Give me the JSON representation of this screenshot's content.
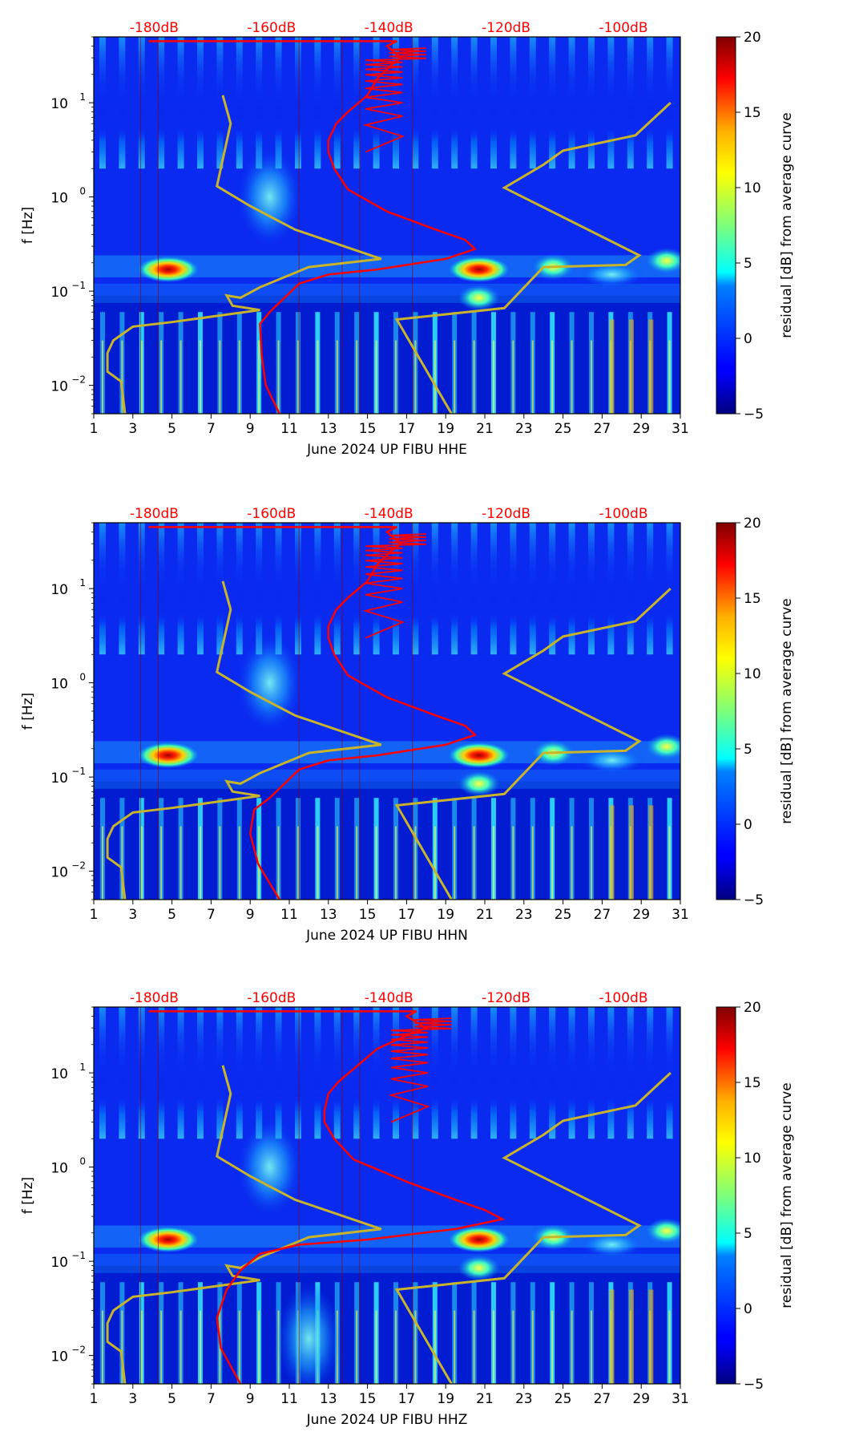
{
  "chart_data": [
    {
      "type": "heatmap",
      "xlabel": "June 2024 UP FIBU  HHE",
      "ylabel": "f [Hz]",
      "xlim": [
        1,
        31
      ],
      "ylim": [
        0.005,
        50
      ],
      "yscale": "log",
      "x_ticks": [
        "1",
        "3",
        "5",
        "7",
        "9",
        "11",
        "13",
        "15",
        "17",
        "19",
        "21",
        "23",
        "25",
        "27",
        "29",
        "31"
      ],
      "y_ticks": [
        {
          "base": "10",
          "exp": "1",
          "value": 10
        },
        {
          "base": "10",
          "exp": "0",
          "value": 1
        },
        {
          "base": "10",
          "exp": "−1",
          "value": 0.1
        },
        {
          "base": "10",
          "exp": "−2",
          "value": 0.01
        }
      ],
      "db_labels": [
        {
          "text": "-180dB",
          "x": 4.5
        },
        {
          "text": "-160dB",
          "x": 10.5
        },
        {
          "text": "-140dB",
          "x": 16.5
        },
        {
          "text": "-120dB",
          "x": 22.5
        },
        {
          "text": "-100dB",
          "x": 28.5
        }
      ],
      "colorbar": {
        "label": "residual [dB] from average curve",
        "min": -5,
        "max": 20,
        "ticks": [
          "20",
          "15",
          "10",
          "5",
          "0",
          "−5"
        ]
      },
      "hotspots": [
        {
          "day": 4.8,
          "f": 0.17,
          "level": 20
        },
        {
          "day": 20.7,
          "f": 0.17,
          "level": 18
        },
        {
          "day": 20.7,
          "f": 0.085,
          "level": 12
        },
        {
          "day": 24.5,
          "f": 0.18,
          "level": 10
        },
        {
          "day": 30.3,
          "f": 0.21,
          "level": 10
        },
        {
          "day": 10.0,
          "f": 1.0,
          "level": 6
        },
        {
          "day": 27.5,
          "f": 0.15,
          "level": 8
        }
      ],
      "yellow_curve": [
        [
          7.6,
          12
        ],
        [
          8.0,
          6
        ],
        [
          7.3,
          1.3
        ],
        [
          9.0,
          0.8
        ],
        [
          11.3,
          0.45
        ],
        [
          15.7,
          0.22
        ],
        [
          12.0,
          0.18
        ],
        [
          9.5,
          0.11
        ],
        [
          8.5,
          0.085
        ],
        [
          7.8,
          0.09
        ],
        [
          8.1,
          0.07
        ],
        [
          9.5,
          0.063
        ],
        [
          5.0,
          0.047
        ],
        [
          3.0,
          0.042
        ],
        [
          2.0,
          0.03
        ],
        [
          1.7,
          0.022
        ],
        [
          1.7,
          0.014
        ],
        [
          2.4,
          0.011
        ],
        [
          2.6,
          0.005
        ]
      ],
      "yellow_curve2": [
        [
          30.5,
          10
        ],
        [
          28.7,
          4.5
        ],
        [
          25.0,
          3.1
        ],
        [
          24.0,
          2.2
        ],
        [
          22.0,
          1.25
        ],
        [
          28.9,
          0.24
        ],
        [
          28.2,
          0.19
        ],
        [
          24.0,
          0.18
        ],
        [
          22.0,
          0.066
        ],
        [
          16.5,
          0.05
        ],
        [
          19.3,
          0.005
        ]
      ],
      "red_curve": [
        [
          3.8,
          45
        ],
        [
          16.5,
          45
        ],
        [
          16.0,
          40
        ],
        [
          16.7,
          30
        ],
        [
          16.2,
          25
        ],
        [
          15.5,
          18
        ],
        [
          15.0,
          12
        ],
        [
          14.0,
          8
        ],
        [
          13.4,
          6
        ],
        [
          13.0,
          4
        ],
        [
          13.0,
          3
        ],
        [
          13.3,
          2
        ],
        [
          14.0,
          1.2
        ],
        [
          16.0,
          0.7
        ],
        [
          18.5,
          0.45
        ],
        [
          20.0,
          0.35
        ],
        [
          20.5,
          0.28
        ],
        [
          19.0,
          0.22
        ],
        [
          15.5,
          0.17
        ],
        [
          13.0,
          0.15
        ],
        [
          11.5,
          0.12
        ],
        [
          10.0,
          0.06
        ],
        [
          9.5,
          0.045
        ],
        [
          9.6,
          0.02
        ],
        [
          9.8,
          0.01
        ],
        [
          10.5,
          0.005
        ]
      ]
    },
    {
      "type": "heatmap",
      "xlabel": "June 2024 UP FIBU  HHN",
      "ylabel": "f [Hz]",
      "xlim": [
        1,
        31
      ],
      "ylim": [
        0.005,
        50
      ],
      "yscale": "log",
      "x_ticks": [
        "1",
        "3",
        "5",
        "7",
        "9",
        "11",
        "13",
        "15",
        "17",
        "19",
        "21",
        "23",
        "25",
        "27",
        "29",
        "31"
      ],
      "y_ticks": [
        {
          "base": "10",
          "exp": "1",
          "value": 10
        },
        {
          "base": "10",
          "exp": "0",
          "value": 1
        },
        {
          "base": "10",
          "exp": "−1",
          "value": 0.1
        },
        {
          "base": "10",
          "exp": "−2",
          "value": 0.01
        }
      ],
      "db_labels": [
        {
          "text": "-180dB",
          "x": 4.5
        },
        {
          "text": "-160dB",
          "x": 10.5
        },
        {
          "text": "-140dB",
          "x": 16.5
        },
        {
          "text": "-120dB",
          "x": 22.5
        },
        {
          "text": "-100dB",
          "x": 28.5
        }
      ],
      "colorbar": {
        "label": "residual [dB] from average curve",
        "min": -5,
        "max": 20,
        "ticks": [
          "20",
          "15",
          "10",
          "5",
          "0",
          "−5"
        ]
      },
      "hotspots": [
        {
          "day": 4.8,
          "f": 0.17,
          "level": 20
        },
        {
          "day": 20.7,
          "f": 0.17,
          "level": 18
        },
        {
          "day": 20.7,
          "f": 0.085,
          "level": 12
        },
        {
          "day": 24.5,
          "f": 0.18,
          "level": 10
        },
        {
          "day": 30.3,
          "f": 0.21,
          "level": 10
        },
        {
          "day": 10.0,
          "f": 1.0,
          "level": 6
        },
        {
          "day": 27.5,
          "f": 0.15,
          "level": 8
        }
      ],
      "yellow_curve": [
        [
          7.6,
          12
        ],
        [
          8.0,
          6
        ],
        [
          7.3,
          1.3
        ],
        [
          9.0,
          0.8
        ],
        [
          11.3,
          0.45
        ],
        [
          15.7,
          0.22
        ],
        [
          12.0,
          0.18
        ],
        [
          9.5,
          0.11
        ],
        [
          8.5,
          0.085
        ],
        [
          7.8,
          0.09
        ],
        [
          8.1,
          0.07
        ],
        [
          9.5,
          0.063
        ],
        [
          5.0,
          0.047
        ],
        [
          3.0,
          0.042
        ],
        [
          2.0,
          0.03
        ],
        [
          1.7,
          0.022
        ],
        [
          1.7,
          0.014
        ],
        [
          2.4,
          0.011
        ],
        [
          2.6,
          0.005
        ]
      ],
      "yellow_curve2": [
        [
          30.5,
          10
        ],
        [
          28.7,
          4.5
        ],
        [
          25.0,
          3.1
        ],
        [
          24.0,
          2.2
        ],
        [
          22.0,
          1.25
        ],
        [
          28.9,
          0.24
        ],
        [
          28.2,
          0.19
        ],
        [
          24.0,
          0.18
        ],
        [
          22.0,
          0.066
        ],
        [
          16.5,
          0.05
        ],
        [
          19.3,
          0.005
        ]
      ],
      "red_curve": [
        [
          3.8,
          45
        ],
        [
          16.5,
          45
        ],
        [
          16.0,
          40
        ],
        [
          16.7,
          30
        ],
        [
          16.2,
          25
        ],
        [
          15.5,
          18
        ],
        [
          15.0,
          12
        ],
        [
          14.0,
          8
        ],
        [
          13.4,
          6
        ],
        [
          13.0,
          4
        ],
        [
          13.0,
          3
        ],
        [
          13.3,
          2
        ],
        [
          14.0,
          1.2
        ],
        [
          16.0,
          0.7
        ],
        [
          18.5,
          0.45
        ],
        [
          20.0,
          0.35
        ],
        [
          20.5,
          0.28
        ],
        [
          19.0,
          0.22
        ],
        [
          15.5,
          0.17
        ],
        [
          13.0,
          0.15
        ],
        [
          11.5,
          0.12
        ],
        [
          10.0,
          0.06
        ],
        [
          9.2,
          0.045
        ],
        [
          9.0,
          0.025
        ],
        [
          9.4,
          0.012
        ],
        [
          10.5,
          0.005
        ]
      ]
    },
    {
      "type": "heatmap",
      "xlabel": "June 2024 UP FIBU  HHZ",
      "ylabel": "f [Hz]",
      "xlim": [
        1,
        31
      ],
      "ylim": [
        0.005,
        50
      ],
      "yscale": "log",
      "x_ticks": [
        "1",
        "3",
        "5",
        "7",
        "9",
        "11",
        "13",
        "15",
        "17",
        "19",
        "21",
        "23",
        "25",
        "27",
        "29",
        "31"
      ],
      "y_ticks": [
        {
          "base": "10",
          "exp": "1",
          "value": 10
        },
        {
          "base": "10",
          "exp": "0",
          "value": 1
        },
        {
          "base": "10",
          "exp": "−1",
          "value": 0.1
        },
        {
          "base": "10",
          "exp": "−2",
          "value": 0.01
        }
      ],
      "db_labels": [
        {
          "text": "-180dB",
          "x": 4.5
        },
        {
          "text": "-160dB",
          "x": 10.5
        },
        {
          "text": "-140dB",
          "x": 16.5
        },
        {
          "text": "-120dB",
          "x": 22.5
        },
        {
          "text": "-100dB",
          "x": 28.5
        }
      ],
      "colorbar": {
        "label": "residual [dB] from average curve",
        "min": -5,
        "max": 20,
        "ticks": [
          "20",
          "15",
          "10",
          "5",
          "0",
          "−5"
        ]
      },
      "hotspots": [
        {
          "day": 4.8,
          "f": 0.17,
          "level": 20
        },
        {
          "day": 20.7,
          "f": 0.17,
          "level": 18
        },
        {
          "day": 20.7,
          "f": 0.085,
          "level": 12
        },
        {
          "day": 24.5,
          "f": 0.18,
          "level": 10
        },
        {
          "day": 30.3,
          "f": 0.21,
          "level": 10
        },
        {
          "day": 10.0,
          "f": 1.0,
          "level": 7
        },
        {
          "day": 27.5,
          "f": 0.15,
          "level": 8
        },
        {
          "day": 12.0,
          "f": 0.015,
          "level": 6
        }
      ],
      "yellow_curve": [
        [
          7.6,
          12
        ],
        [
          8.0,
          6
        ],
        [
          7.3,
          1.3
        ],
        [
          9.0,
          0.8
        ],
        [
          11.3,
          0.45
        ],
        [
          15.7,
          0.22
        ],
        [
          12.0,
          0.18
        ],
        [
          9.5,
          0.11
        ],
        [
          8.5,
          0.085
        ],
        [
          7.8,
          0.09
        ],
        [
          8.1,
          0.07
        ],
        [
          9.5,
          0.063
        ],
        [
          5.0,
          0.047
        ],
        [
          3.0,
          0.042
        ],
        [
          2.0,
          0.03
        ],
        [
          1.7,
          0.022
        ],
        [
          1.7,
          0.014
        ],
        [
          2.4,
          0.011
        ],
        [
          2.6,
          0.005
        ]
      ],
      "yellow_curve2": [
        [
          30.5,
          10
        ],
        [
          28.7,
          4.5
        ],
        [
          25.0,
          3.1
        ],
        [
          24.0,
          2.2
        ],
        [
          22.0,
          1.25
        ],
        [
          28.9,
          0.24
        ],
        [
          28.2,
          0.19
        ],
        [
          24.0,
          0.18
        ],
        [
          22.0,
          0.066
        ],
        [
          16.5,
          0.05
        ],
        [
          19.3,
          0.005
        ]
      ],
      "red_curve": [
        [
          3.8,
          45
        ],
        [
          17.5,
          45
        ],
        [
          17.0,
          40
        ],
        [
          18.0,
          30
        ],
        [
          17.0,
          25
        ],
        [
          15.5,
          18
        ],
        [
          14.5,
          12
        ],
        [
          13.5,
          8
        ],
        [
          13.0,
          6
        ],
        [
          12.8,
          4
        ],
        [
          12.8,
          3
        ],
        [
          13.3,
          2
        ],
        [
          14.3,
          1.2
        ],
        [
          17.0,
          0.7
        ],
        [
          19.5,
          0.45
        ],
        [
          21.0,
          0.35
        ],
        [
          21.9,
          0.28
        ],
        [
          19.5,
          0.22
        ],
        [
          15.0,
          0.17
        ],
        [
          11.5,
          0.15
        ],
        [
          9.5,
          0.12
        ],
        [
          8.5,
          0.08
        ],
        [
          7.8,
          0.05
        ],
        [
          7.3,
          0.025
        ],
        [
          7.5,
          0.012
        ],
        [
          8.5,
          0.005
        ]
      ]
    }
  ]
}
